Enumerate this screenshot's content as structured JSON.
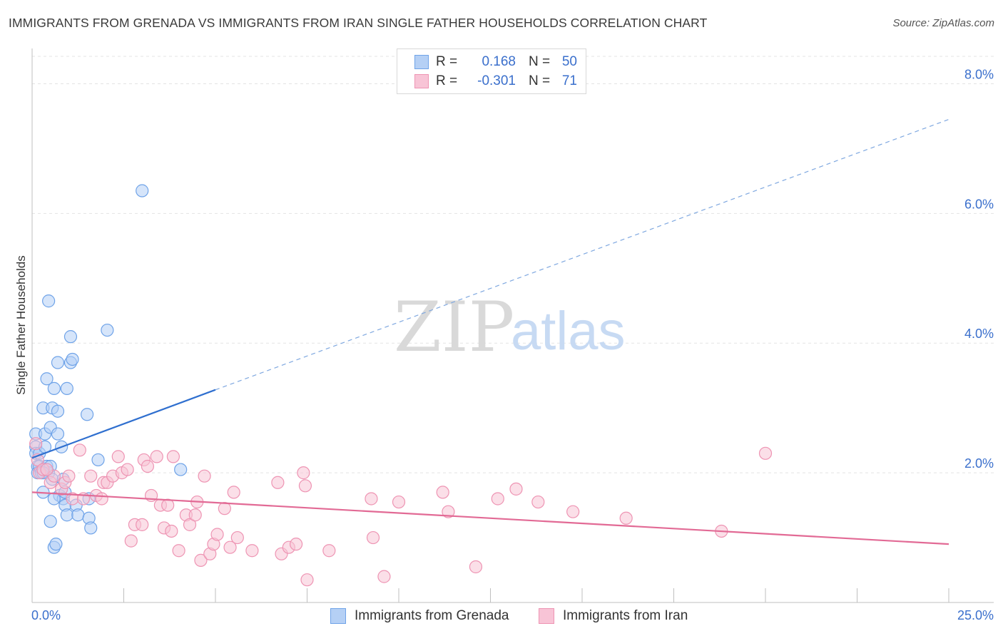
{
  "header": {
    "title": "IMMIGRANTS FROM GRENADA VS IMMIGRANTS FROM IRAN SINGLE FATHER HOUSEHOLDS CORRELATION CHART",
    "source": "Source: ZipAtlas.com"
  },
  "watermark": {
    "zip": "ZIP",
    "atlas": "atlas"
  },
  "stats_legend": {
    "rows": [
      {
        "r_label": "R =",
        "r_value": "0.168",
        "n_label": "N =",
        "n_value": "50"
      },
      {
        "r_label": "R =",
        "r_value": "-0.301",
        "n_label": "N =",
        "n_value": "71"
      }
    ]
  },
  "chart_data": {
    "type": "scatter",
    "title": "IMMIGRANTS FROM GRENADA VS IMMIGRANTS FROM IRAN SINGLE FATHER HOUSEHOLDS CORRELATION CHART",
    "xlabel": "",
    "ylabel": "Single Father Households",
    "xlim": [
      0,
      25
    ],
    "ylim": [
      0,
      8.5
    ],
    "x_tick_labels": {
      "min": "0.0%",
      "max": "25.0%"
    },
    "y_ticks": [
      {
        "value": 2,
        "label": "2.0%"
      },
      {
        "value": 4,
        "label": "4.0%"
      },
      {
        "value": 6,
        "label": "6.0%"
      },
      {
        "value": 8,
        "label": "8.0%"
      }
    ],
    "grid": true,
    "legend_position": "bottom-center",
    "series": [
      {
        "name": "Immigrants from Grenada",
        "color": "#6fa3e8",
        "fill": "#b5d0f5",
        "trend_color": "#2f6fcf",
        "r": 0.168,
        "n": 50,
        "trend": {
          "x0": 0,
          "y0": 2.23,
          "x_solid_end": 5.0,
          "y_solid_end": 3.28,
          "x1": 25,
          "y1": 7.45
        },
        "points": [
          [
            0.1,
            2.6
          ],
          [
            0.1,
            2.4
          ],
          [
            0.1,
            2.3
          ],
          [
            0.15,
            2.1
          ],
          [
            0.15,
            2.0
          ],
          [
            0.2,
            2.3
          ],
          [
            0.2,
            2.1
          ],
          [
            0.25,
            2.0
          ],
          [
            0.3,
            1.7
          ],
          [
            0.3,
            3.0
          ],
          [
            0.35,
            2.6
          ],
          [
            0.35,
            2.4
          ],
          [
            0.4,
            3.45
          ],
          [
            0.4,
            2.1
          ],
          [
            0.45,
            4.65
          ],
          [
            0.45,
            2.0
          ],
          [
            0.5,
            2.7
          ],
          [
            0.5,
            2.1
          ],
          [
            0.5,
            1.25
          ],
          [
            0.55,
            3.0
          ],
          [
            0.55,
            1.9
          ],
          [
            0.6,
            3.3
          ],
          [
            0.6,
            0.85
          ],
          [
            0.65,
            0.9
          ],
          [
            0.7,
            3.7
          ],
          [
            0.7,
            2.95
          ],
          [
            0.7,
            2.6
          ],
          [
            0.75,
            1.65
          ],
          [
            0.8,
            2.4
          ],
          [
            0.85,
            1.9
          ],
          [
            0.85,
            1.6
          ],
          [
            0.9,
            1.7
          ],
          [
            0.9,
            1.5
          ],
          [
            0.95,
            3.3
          ],
          [
            0.95,
            1.35
          ],
          [
            1.05,
            4.1
          ],
          [
            1.05,
            3.7
          ],
          [
            1.1,
            3.75
          ],
          [
            1.2,
            1.5
          ],
          [
            1.25,
            1.35
          ],
          [
            1.5,
            2.9
          ],
          [
            1.55,
            1.6
          ],
          [
            1.55,
            1.3
          ],
          [
            1.6,
            1.15
          ],
          [
            1.8,
            2.2
          ],
          [
            2.05,
            4.2
          ],
          [
            3.0,
            6.35
          ],
          [
            4.05,
            2.05
          ],
          [
            0.3,
            2.0
          ],
          [
            0.6,
            1.6
          ]
        ]
      },
      {
        "name": "Immigrants from Iran",
        "color": "#ee94b3",
        "fill": "#f8c4d6",
        "trend_color": "#e26a95",
        "r": -0.301,
        "n": 71,
        "trend": {
          "x0": 0,
          "y0": 1.7,
          "x1": 25,
          "y1": 0.9
        },
        "points": [
          [
            0.1,
            2.45
          ],
          [
            0.15,
            2.2
          ],
          [
            0.2,
            2.0
          ],
          [
            0.3,
            2.05
          ],
          [
            0.5,
            1.85
          ],
          [
            0.6,
            1.95
          ],
          [
            0.8,
            1.75
          ],
          [
            0.9,
            1.85
          ],
          [
            1.0,
            1.95
          ],
          [
            1.1,
            1.6
          ],
          [
            1.3,
            2.35
          ],
          [
            1.4,
            1.6
          ],
          [
            1.6,
            1.95
          ],
          [
            1.75,
            1.65
          ],
          [
            1.9,
            1.6
          ],
          [
            1.95,
            1.85
          ],
          [
            2.05,
            1.85
          ],
          [
            2.2,
            1.95
          ],
          [
            2.35,
            2.25
          ],
          [
            2.45,
            2.0
          ],
          [
            2.6,
            2.05
          ],
          [
            2.7,
            0.95
          ],
          [
            2.8,
            1.2
          ],
          [
            3.0,
            1.2
          ],
          [
            3.05,
            2.2
          ],
          [
            3.15,
            2.1
          ],
          [
            3.25,
            1.65
          ],
          [
            3.4,
            2.25
          ],
          [
            3.5,
            1.5
          ],
          [
            3.6,
            1.15
          ],
          [
            3.7,
            1.5
          ],
          [
            3.8,
            1.1
          ],
          [
            3.85,
            2.25
          ],
          [
            4.0,
            0.8
          ],
          [
            4.2,
            1.35
          ],
          [
            4.3,
            1.2
          ],
          [
            4.45,
            1.35
          ],
          [
            4.5,
            1.55
          ],
          [
            4.6,
            0.65
          ],
          [
            4.7,
            1.95
          ],
          [
            4.85,
            0.75
          ],
          [
            4.95,
            0.9
          ],
          [
            5.05,
            1.05
          ],
          [
            5.25,
            1.45
          ],
          [
            5.4,
            0.85
          ],
          [
            5.5,
            1.7
          ],
          [
            5.6,
            1.0
          ],
          [
            6.0,
            0.8
          ],
          [
            6.7,
            1.85
          ],
          [
            6.8,
            0.75
          ],
          [
            7.0,
            0.85
          ],
          [
            7.2,
            0.9
          ],
          [
            7.4,
            2.0
          ],
          [
            7.45,
            1.8
          ],
          [
            7.5,
            0.35
          ],
          [
            8.1,
            0.8
          ],
          [
            9.25,
            1.6
          ],
          [
            9.3,
            1.0
          ],
          [
            9.6,
            0.4
          ],
          [
            10.0,
            1.55
          ],
          [
            11.2,
            1.7
          ],
          [
            11.35,
            1.4
          ],
          [
            12.1,
            0.55
          ],
          [
            12.7,
            1.6
          ],
          [
            13.2,
            1.75
          ],
          [
            13.8,
            1.55
          ],
          [
            14.75,
            1.4
          ],
          [
            16.2,
            1.3
          ],
          [
            18.8,
            1.1
          ],
          [
            20.0,
            2.3
          ],
          [
            0.4,
            2.05
          ]
        ]
      }
    ]
  }
}
